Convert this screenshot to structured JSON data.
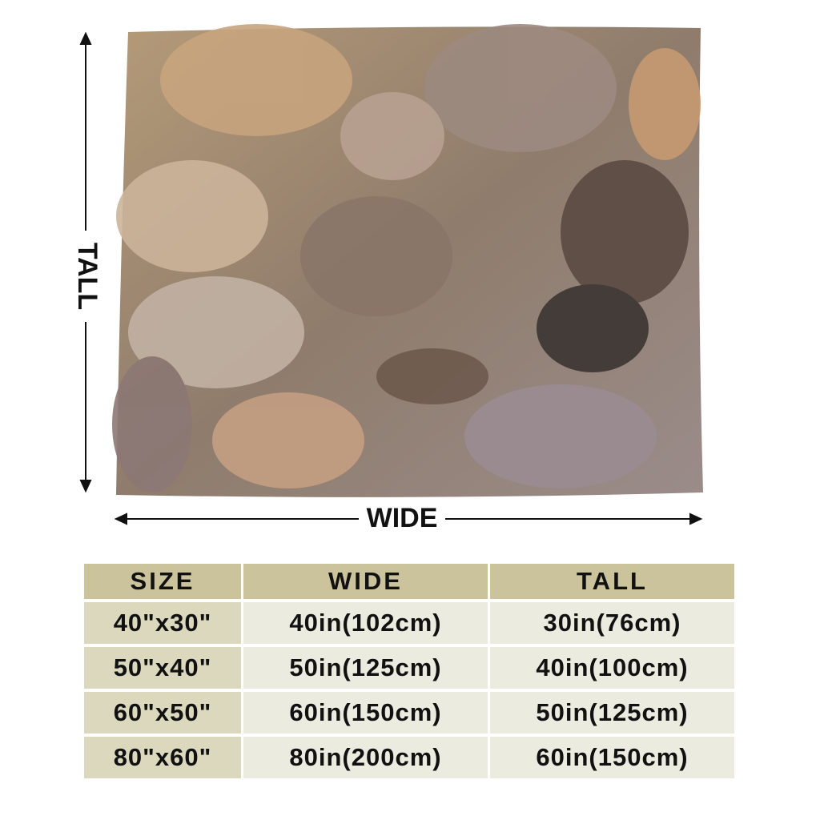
{
  "dimension_labels": {
    "tall": "TALL",
    "wide": "WIDE"
  },
  "table": {
    "header": [
      "SIZE",
      "WIDE",
      "TALL"
    ],
    "rows": [
      [
        "40\"x30\"",
        "40in(102cm)",
        "30in(76cm)"
      ],
      [
        "50\"x40\"",
        "50in(125cm)",
        "40in(100cm)"
      ],
      [
        "60\"x50\"",
        "60in(150cm)",
        "50in(125cm)"
      ],
      [
        "80\"x60\"",
        "80in(200cm)",
        "60in(150cm)"
      ]
    ]
  }
}
